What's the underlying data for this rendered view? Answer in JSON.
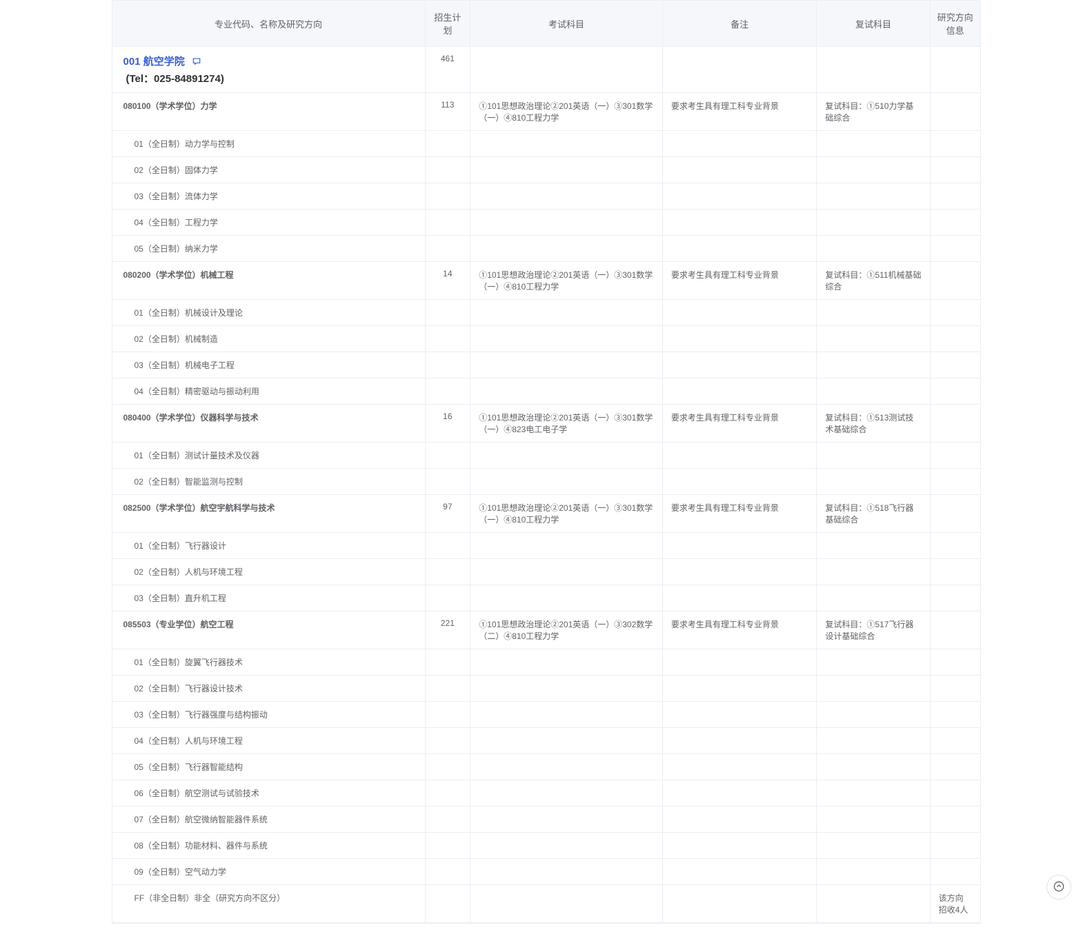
{
  "headers": {
    "name": "专业代码、名称及研究方向",
    "plan": "招生计划",
    "exam": "考试科目",
    "note": "备注",
    "retest": "复试科目",
    "info": "研究方向信息"
  },
  "department": {
    "code": "001",
    "name": "航空学院",
    "full": "001 航空学院",
    "tel_label": "(Tel：025-84891274)",
    "plan": "461"
  },
  "majors": [
    {
      "title": "080100（学术学位）力学",
      "plan": "113",
      "exam": "①101思想政治理论②201英语（一）③301数学（一）④810工程力学",
      "note": "要求考生具有理工科专业背景",
      "retest": "复试科目：①510力学基础综合",
      "directions": [
        "01（全日制）动力学与控制",
        "02（全日制）固体力学",
        "03（全日制）流体力学",
        "04（全日制）工程力学",
        "05（全日制）纳米力学"
      ]
    },
    {
      "title": "080200（学术学位）机械工程",
      "plan": "14",
      "exam": "①101思想政治理论②201英语（一）③301数学（一）④810工程力学",
      "note": "要求考生具有理工科专业背景",
      "retest": "复试科目：①511机械基础综合",
      "directions": [
        "01（全日制）机械设计及理论",
        "02（全日制）机械制造",
        "03（全日制）机械电子工程",
        "04（全日制）精密驱动与振动利用"
      ]
    },
    {
      "title": "080400（学术学位）仪器科学与技术",
      "plan": "16",
      "exam": "①101思想政治理论②201英语（一）③301数学（一）④823电工电子学",
      "note": "要求考生具有理工科专业背景",
      "retest": "复试科目：①513测试技术基础综合",
      "directions": [
        "01（全日制）测试计量技术及仪器",
        "02（全日制）智能监测与控制"
      ]
    },
    {
      "title": "082500（学术学位）航空宇航科学与技术",
      "plan": "97",
      "exam": "①101思想政治理论②201英语（一）③301数学（一）④810工程力学",
      "note": "要求考生具有理工科专业背景",
      "retest": "复试科目：①518飞行器基础综合",
      "directions": [
        "01（全日制）飞行器设计",
        "02（全日制）人机与环境工程",
        "03（全日制）直升机工程"
      ]
    },
    {
      "title": "085503（专业学位）航空工程",
      "plan": "221",
      "exam": "①101思想政治理论②201英语（一）③302数学（二）④810工程力学",
      "note": "要求考生具有理工科专业背景",
      "retest": "复试科目：①517飞行器设计基础综合",
      "directions": [
        "01（全日制）旋翼飞行器技术",
        "02（全日制）飞行器设计技术",
        "03（全日制）飞行器强度与结构振动",
        "04（全日制）人机与环境工程",
        "05（全日制）飞行器智能结构",
        "06（全日制）航空测试与试验技术",
        "07（全日制）航空微纳智能器件系统",
        "08（全日制）功能材料、器件与系统",
        "09（全日制）空气动力学",
        "FF（非全日制）非全（研究方向不区分）"
      ],
      "direction_info": [
        "",
        "",
        "",
        "",
        "",
        "",
        "",
        "",
        "",
        "该方向招收4人"
      ]
    }
  ],
  "colors": {
    "header_bg": "#f5f7fa",
    "border": "#ebeef5",
    "text": "#606266",
    "dept_title": "#3a5fcd",
    "dept_tel": "#303133"
  }
}
